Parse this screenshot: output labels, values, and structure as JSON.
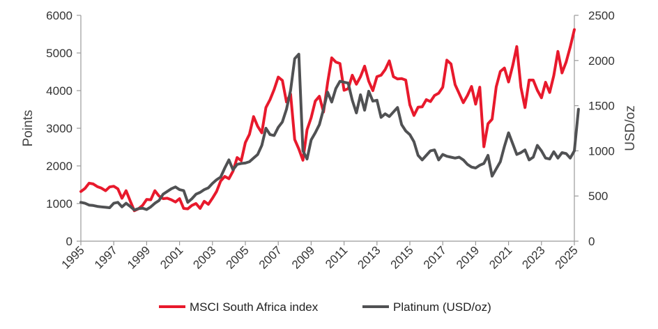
{
  "chart_data": {
    "type": "line",
    "title": "",
    "ylabel": "Points",
    "y2label": "USD/oz",
    "xlim": [
      1995,
      2025
    ],
    "ylim": [
      0,
      6000
    ],
    "y2lim": [
      0,
      2500
    ],
    "x_ticks": [
      "1995",
      "1997",
      "1999",
      "2001",
      "2003",
      "2005",
      "2007",
      "2009",
      "2011",
      "2013",
      "2015",
      "2017",
      "2019",
      "2021",
      "2023",
      "2025"
    ],
    "y_ticks": [
      "0",
      "1000",
      "2000",
      "3000",
      "4000",
      "5000",
      "6000"
    ],
    "y2_ticks": [
      "0",
      "500",
      "1000",
      "1500",
      "2000",
      "2500"
    ],
    "legend_position": "bottom",
    "grid": false,
    "series": [
      {
        "name": "MSCI South Africa index",
        "axis": "left",
        "color": "#e8192c",
        "points": [
          [
            1995.0,
            1320
          ],
          [
            1995.25,
            1400
          ],
          [
            1995.5,
            1540
          ],
          [
            1995.75,
            1520
          ],
          [
            1996.0,
            1450
          ],
          [
            1996.25,
            1410
          ],
          [
            1996.5,
            1340
          ],
          [
            1996.75,
            1440
          ],
          [
            1997.0,
            1460
          ],
          [
            1997.25,
            1390
          ],
          [
            1997.5,
            1140
          ],
          [
            1997.75,
            1340
          ],
          [
            1998.0,
            1070
          ],
          [
            1998.25,
            810
          ],
          [
            1998.5,
            860
          ],
          [
            1998.75,
            950
          ],
          [
            1999.0,
            1110
          ],
          [
            1999.25,
            1100
          ],
          [
            1999.5,
            1340
          ],
          [
            1999.75,
            1200
          ],
          [
            2000.0,
            1130
          ],
          [
            2000.25,
            1140
          ],
          [
            2000.5,
            1100
          ],
          [
            2000.75,
            1040
          ],
          [
            2001.0,
            1130
          ],
          [
            2001.25,
            870
          ],
          [
            2001.5,
            860
          ],
          [
            2001.75,
            950
          ],
          [
            2002.0,
            1000
          ],
          [
            2002.25,
            870
          ],
          [
            2002.5,
            1060
          ],
          [
            2002.75,
            980
          ],
          [
            2003.0,
            1140
          ],
          [
            2003.25,
            1320
          ],
          [
            2003.5,
            1600
          ],
          [
            2003.75,
            1720
          ],
          [
            2004.0,
            1660
          ],
          [
            2004.25,
            1860
          ],
          [
            2004.5,
            2220
          ],
          [
            2004.75,
            2140
          ],
          [
            2005.0,
            2620
          ],
          [
            2005.25,
            2840
          ],
          [
            2005.5,
            3310
          ],
          [
            2005.75,
            3050
          ],
          [
            2006.0,
            2880
          ],
          [
            2006.25,
            3550
          ],
          [
            2006.5,
            3760
          ],
          [
            2006.75,
            4030
          ],
          [
            2007.0,
            4360
          ],
          [
            2007.25,
            4270
          ],
          [
            2007.5,
            3700
          ],
          [
            2007.75,
            3910
          ],
          [
            2008.0,
            2700
          ],
          [
            2008.25,
            2450
          ],
          [
            2008.5,
            2150
          ],
          [
            2008.75,
            2960
          ],
          [
            2009.0,
            3280
          ],
          [
            2009.25,
            3720
          ],
          [
            2009.5,
            3850
          ],
          [
            2009.75,
            3430
          ],
          [
            2010.0,
            4210
          ],
          [
            2010.25,
            4870
          ],
          [
            2010.5,
            4760
          ],
          [
            2010.75,
            4720
          ],
          [
            2011.0,
            4010
          ],
          [
            2011.25,
            4050
          ],
          [
            2011.5,
            4410
          ],
          [
            2011.75,
            4170
          ],
          [
            2012.0,
            4370
          ],
          [
            2012.25,
            4650
          ],
          [
            2012.5,
            4250
          ],
          [
            2012.75,
            4000
          ],
          [
            2013.0,
            4370
          ],
          [
            2013.25,
            4410
          ],
          [
            2013.5,
            4560
          ],
          [
            2013.75,
            4790
          ],
          [
            2014.0,
            4370
          ],
          [
            2014.25,
            4310
          ],
          [
            2014.5,
            4320
          ],
          [
            2014.75,
            4280
          ],
          [
            2015.0,
            3620
          ],
          [
            2015.25,
            3340
          ],
          [
            2015.5,
            3560
          ],
          [
            2015.75,
            3570
          ],
          [
            2016.0,
            3760
          ],
          [
            2016.25,
            3710
          ],
          [
            2016.5,
            3870
          ],
          [
            2016.75,
            3930
          ],
          [
            2017.0,
            4090
          ],
          [
            2017.25,
            4810
          ],
          [
            2017.5,
            4710
          ],
          [
            2017.75,
            4160
          ],
          [
            2018.0,
            3920
          ],
          [
            2018.25,
            3680
          ],
          [
            2018.5,
            3870
          ],
          [
            2018.75,
            4110
          ],
          [
            2019.0,
            3640
          ],
          [
            2019.25,
            4090
          ],
          [
            2019.5,
            2510
          ],
          [
            2019.75,
            3120
          ],
          [
            2020.0,
            3240
          ],
          [
            2020.25,
            4100
          ],
          [
            2020.5,
            4510
          ],
          [
            2020.75,
            4600
          ],
          [
            2021.0,
            4230
          ],
          [
            2021.25,
            4660
          ],
          [
            2021.5,
            5170
          ],
          [
            2021.75,
            4090
          ],
          [
            2022.0,
            3550
          ],
          [
            2022.25,
            4280
          ],
          [
            2022.5,
            4280
          ],
          [
            2022.75,
            4010
          ],
          [
            2023.0,
            3810
          ],
          [
            2023.25,
            4220
          ],
          [
            2023.5,
            3950
          ],
          [
            2023.75,
            4400
          ],
          [
            2024.0,
            5040
          ],
          [
            2024.25,
            4470
          ],
          [
            2024.5,
            4760
          ],
          [
            2024.75,
            5160
          ],
          [
            2025.0,
            5620
          ]
        ]
      },
      {
        "name": "Platinum (USD/oz)",
        "axis": "right",
        "color": "#505153",
        "points": [
          [
            1995.0,
            430
          ],
          [
            1995.25,
            420
          ],
          [
            1995.5,
            400
          ],
          [
            1995.75,
            395
          ],
          [
            1996.0,
            385
          ],
          [
            1996.25,
            380
          ],
          [
            1996.5,
            375
          ],
          [
            1996.75,
            370
          ],
          [
            1997.0,
            420
          ],
          [
            1997.25,
            430
          ],
          [
            1997.5,
            380
          ],
          [
            1997.75,
            420
          ],
          [
            1998.0,
            385
          ],
          [
            1998.25,
            345
          ],
          [
            1998.5,
            360
          ],
          [
            1998.75,
            365
          ],
          [
            1999.0,
            350
          ],
          [
            1999.25,
            380
          ],
          [
            1999.5,
            420
          ],
          [
            1999.75,
            450
          ],
          [
            2000.0,
            520
          ],
          [
            2000.25,
            550
          ],
          [
            2000.5,
            580
          ],
          [
            2000.75,
            600
          ],
          [
            2001.0,
            570
          ],
          [
            2001.25,
            560
          ],
          [
            2001.5,
            430
          ],
          [
            2001.75,
            470
          ],
          [
            2002.0,
            520
          ],
          [
            2002.25,
            540
          ],
          [
            2002.5,
            570
          ],
          [
            2002.75,
            590
          ],
          [
            2003.0,
            640
          ],
          [
            2003.25,
            680
          ],
          [
            2003.5,
            710
          ],
          [
            2003.75,
            810
          ],
          [
            2004.0,
            900
          ],
          [
            2004.25,
            790
          ],
          [
            2004.5,
            850
          ],
          [
            2004.75,
            860
          ],
          [
            2005.0,
            865
          ],
          [
            2005.25,
            880
          ],
          [
            2005.5,
            920
          ],
          [
            2005.75,
            960
          ],
          [
            2006.0,
            1060
          ],
          [
            2006.25,
            1250
          ],
          [
            2006.5,
            1180
          ],
          [
            2006.75,
            1170
          ],
          [
            2007.0,
            1260
          ],
          [
            2007.25,
            1320
          ],
          [
            2007.5,
            1460
          ],
          [
            2007.75,
            1670
          ],
          [
            2008.0,
            2020
          ],
          [
            2008.25,
            2070
          ],
          [
            2008.5,
            1000
          ],
          [
            2008.75,
            910
          ],
          [
            2009.0,
            1120
          ],
          [
            2009.25,
            1200
          ],
          [
            2009.5,
            1290
          ],
          [
            2009.75,
            1460
          ],
          [
            2010.0,
            1650
          ],
          [
            2010.25,
            1540
          ],
          [
            2010.5,
            1690
          ],
          [
            2010.75,
            1770
          ],
          [
            2011.0,
            1760
          ],
          [
            2011.25,
            1750
          ],
          [
            2011.5,
            1560
          ],
          [
            2011.75,
            1420
          ],
          [
            2012.0,
            1620
          ],
          [
            2012.25,
            1450
          ],
          [
            2012.5,
            1660
          ],
          [
            2012.75,
            1550
          ],
          [
            2013.0,
            1560
          ],
          [
            2013.25,
            1370
          ],
          [
            2013.5,
            1410
          ],
          [
            2013.75,
            1380
          ],
          [
            2014.0,
            1430
          ],
          [
            2014.25,
            1480
          ],
          [
            2014.5,
            1290
          ],
          [
            2014.75,
            1220
          ],
          [
            2015.0,
            1180
          ],
          [
            2015.25,
            1100
          ],
          [
            2015.5,
            950
          ],
          [
            2015.75,
            900
          ],
          [
            2016.0,
            950
          ],
          [
            2016.25,
            1000
          ],
          [
            2016.5,
            1010
          ],
          [
            2016.75,
            900
          ],
          [
            2017.0,
            960
          ],
          [
            2017.25,
            940
          ],
          [
            2017.5,
            930
          ],
          [
            2017.75,
            920
          ],
          [
            2018.0,
            930
          ],
          [
            2018.25,
            900
          ],
          [
            2018.5,
            850
          ],
          [
            2018.75,
            820
          ],
          [
            2019.0,
            810
          ],
          [
            2019.25,
            840
          ],
          [
            2019.5,
            860
          ],
          [
            2019.75,
            950
          ],
          [
            2020.0,
            720
          ],
          [
            2020.25,
            800
          ],
          [
            2020.5,
            880
          ],
          [
            2020.75,
            1050
          ],
          [
            2021.0,
            1200
          ],
          [
            2021.25,
            1080
          ],
          [
            2021.5,
            960
          ],
          [
            2021.75,
            980
          ],
          [
            2022.0,
            1010
          ],
          [
            2022.25,
            900
          ],
          [
            2022.5,
            930
          ],
          [
            2022.75,
            1060
          ],
          [
            2023.0,
            1000
          ],
          [
            2023.25,
            920
          ],
          [
            2023.5,
            910
          ],
          [
            2023.75,
            990
          ],
          [
            2024.0,
            920
          ],
          [
            2024.25,
            980
          ],
          [
            2024.5,
            970
          ],
          [
            2024.75,
            920
          ],
          [
            2025.0,
            1000
          ],
          [
            2025.25,
            1460
          ]
        ]
      }
    ]
  }
}
